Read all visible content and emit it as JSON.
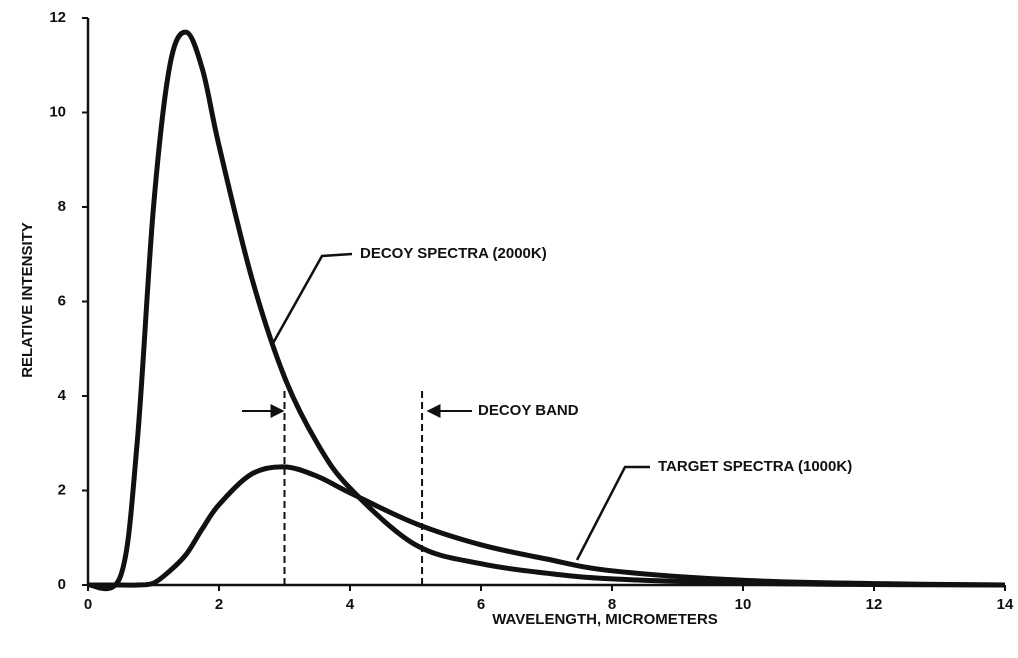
{
  "chart_data": {
    "type": "line",
    "x_label": "WAVELENGTH, MICROMETERS",
    "y_label": "RELATIVE INTENSITY",
    "x": [
      0,
      0.5,
      0.75,
      1,
      1.25,
      1.5,
      1.75,
      2,
      2.5,
      3,
      3.5,
      4,
      5,
      6,
      7,
      8,
      10,
      12,
      14
    ],
    "series": [
      {
        "name": "DECOY SPECTRA (2000K)",
        "color": "#111111",
        "values": [
          0,
          0.2,
          3.0,
          8.0,
          11.0,
          11.7,
          10.9,
          9.3,
          6.5,
          4.4,
          3.0,
          2.05,
          0.85,
          0.45,
          0.25,
          0.13,
          0.04,
          0.01,
          0
        ]
      },
      {
        "name": "TARGET SPECTRA (1000K)",
        "color": "#111111",
        "values": [
          0,
          0,
          0,
          0.04,
          0.3,
          0.65,
          1.2,
          1.7,
          2.35,
          2.5,
          2.3,
          1.95,
          1.3,
          0.85,
          0.55,
          0.3,
          0.1,
          0.03,
          0
        ]
      }
    ],
    "band_label": "DECOY BAND",
    "band": [
      3,
      5.1
    ],
    "xlim": [
      0,
      14
    ],
    "xticks": [
      0,
      2,
      4,
      6,
      8,
      10,
      12,
      14
    ],
    "ylim": [
      0,
      12
    ],
    "yticks": [
      0,
      2,
      4,
      6,
      8,
      10,
      12
    ],
    "grid": false
  }
}
